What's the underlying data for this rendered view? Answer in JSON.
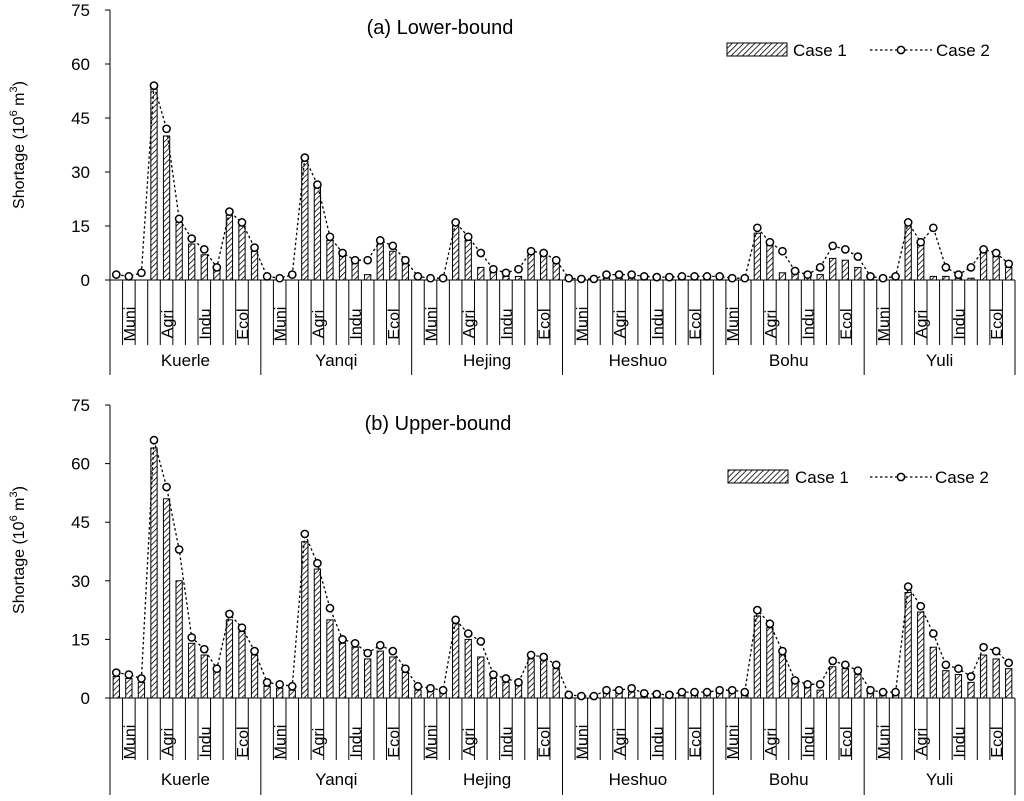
{
  "colors": {
    "axis": "#000000",
    "bar_fill": "#ffffff",
    "hatch": "#000000",
    "line": "#000000"
  },
  "chart_data": [
    {
      "type": "bar",
      "title": "(a) Lower-bound",
      "ylabel_main": "Shortage",
      "ylabel_unit": "(10",
      "ylabel_exp1": "6",
      "ylabel_m": " m",
      "ylabel_exp2": "3",
      "ylabel_close": ")",
      "ylim": [
        0,
        75
      ],
      "yticks": [
        "0",
        "15",
        "30",
        "45",
        "60",
        "75"
      ],
      "legend": [
        "Case 1",
        "Case 2"
      ],
      "sector_labels": [
        "Muni",
        "Agri",
        "Indu",
        "Ecol"
      ],
      "regions": [
        "Kuerle",
        "Yanqi",
        "Hejing",
        "Heshuo",
        "Bohu",
        "Yuli"
      ],
      "series": [
        {
          "name": "Case 1",
          "values": [
            0,
            0,
            0,
            53,
            40,
            16,
            10,
            7,
            3,
            18,
            15,
            8,
            0,
            0,
            0,
            33,
            26,
            11,
            7,
            5,
            1.5,
            10,
            8,
            4.5,
            0,
            0,
            0,
            15,
            11,
            3.5,
            2.5,
            1,
            1,
            7.5,
            7,
            4.5,
            0,
            0,
            0,
            0.5,
            0.5,
            0.5,
            0.3,
            0.2,
            0.2,
            0.5,
            0.5,
            0.5,
            0,
            0,
            0,
            13,
            10,
            2,
            2,
            1,
            1.5,
            6,
            5.5,
            3.5,
            0,
            0,
            0,
            15,
            10,
            1,
            1,
            0.5,
            0.5,
            8,
            6.5,
            3.5
          ]
        },
        {
          "name": "Case 2",
          "values": [
            1.5,
            1,
            2,
            54,
            42,
            17,
            11.5,
            8.5,
            3.5,
            19,
            16,
            9,
            1,
            0.5,
            1.5,
            34,
            26.5,
            12,
            7.5,
            5.5,
            5.5,
            11,
            9.5,
            5.5,
            1,
            0.5,
            0.5,
            16,
            12,
            7.5,
            3,
            2,
            3,
            8,
            7.5,
            5.5,
            0.5,
            0.3,
            0.3,
            1.5,
            1.5,
            1.5,
            1,
            0.8,
            0.8,
            1,
            1,
            1,
            1,
            0.5,
            0.5,
            14.5,
            10.5,
            8,
            2.5,
            1.5,
            3.5,
            9.5,
            8.5,
            6.5,
            1,
            0.5,
            1,
            16,
            10.5,
            14.5,
            3.5,
            1.5,
            3.5,
            8.5,
            7.5,
            4.5
          ]
        }
      ]
    },
    {
      "type": "bar",
      "title": "(b) Upper-bound",
      "ylabel_main": "Shortage",
      "ylabel_unit": "(10",
      "ylabel_exp1": "6",
      "ylabel_m": " m",
      "ylabel_exp2": "3",
      "ylabel_close": ")",
      "ylim": [
        0,
        75
      ],
      "yticks": [
        "0",
        "15",
        "30",
        "45",
        "60",
        "75"
      ],
      "legend": [
        "Case 1",
        "Case 2"
      ],
      "sector_labels": [
        "Muni",
        "Agri",
        "Indu",
        "Ecol"
      ],
      "regions": [
        "Kuerle",
        "Yanqi",
        "Hejing",
        "Heshuo",
        "Bohu",
        "Yuli"
      ],
      "series": [
        {
          "name": "Case 1",
          "values": [
            5.5,
            5,
            4,
            64,
            51,
            30,
            14,
            11,
            7,
            20,
            17,
            11,
            3,
            2.5,
            2,
            40,
            33,
            20,
            14,
            13,
            10,
            12,
            10.5,
            6.5,
            2,
            2,
            1.5,
            19,
            15,
            10.5,
            5,
            4,
            3.5,
            10,
            9.5,
            7.5,
            0.3,
            0.2,
            0.2,
            1.5,
            1.5,
            1.5,
            0.7,
            0.7,
            0.3,
            1,
            1,
            1,
            1.5,
            1.5,
            1,
            21,
            18,
            11,
            4,
            3,
            2,
            8,
            7.5,
            6,
            1.5,
            1,
            1,
            27,
            22,
            13,
            7,
            6,
            4,
            11,
            10,
            7.5
          ]
        },
        {
          "name": "Case 2",
          "values": [
            6.5,
            6,
            5,
            66,
            54,
            38,
            15.5,
            12.5,
            7.5,
            21.5,
            18,
            12,
            4,
            3.5,
            3,
            42,
            34.5,
            23,
            15,
            14,
            11.5,
            13.5,
            12,
            7.5,
            3,
            2.5,
            2,
            20,
            16.5,
            14.5,
            6,
            5,
            4,
            11,
            10.5,
            8.5,
            0.8,
            0.5,
            0.5,
            2,
            2,
            2.5,
            1.2,
            1,
            0.8,
            1.5,
            1.5,
            1.5,
            2,
            2,
            1.5,
            22.5,
            19,
            12,
            4.5,
            3.5,
            3.5,
            9.5,
            8.5,
            7,
            2,
            1.5,
            1.5,
            28.5,
            23.5,
            16.5,
            8.5,
            7.5,
            5.5,
            13,
            12,
            9
          ]
        }
      ]
    }
  ]
}
